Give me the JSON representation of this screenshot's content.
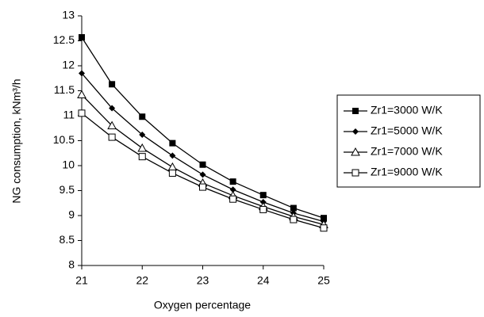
{
  "chart_data": {
    "type": "line",
    "x": [
      21,
      21.5,
      22,
      22.5,
      23,
      23.5,
      24,
      24.5,
      25
    ],
    "xlim": [
      21,
      25
    ],
    "xticks": [
      21,
      22,
      23,
      24,
      25
    ],
    "ylim": [
      8,
      13
    ],
    "yticks": [
      8,
      8.5,
      9,
      9.5,
      10,
      10.5,
      11,
      11.5,
      12,
      12.5,
      13
    ],
    "x_label": "Oxygen percentage",
    "y_label": "NG consumption, kNm³/h",
    "grid": false,
    "legend": "right",
    "series": [
      {
        "name": "Zr1=3000 W/K",
        "color": "#000000",
        "marker": "square-filled",
        "values": [
          12.57,
          11.63,
          10.98,
          10.45,
          10.02,
          9.68,
          9.41,
          9.15,
          8.95
        ]
      },
      {
        "name": "Zr1=5000 W/K",
        "color": "#000000",
        "marker": "diamond",
        "values": [
          11.85,
          11.15,
          10.62,
          10.2,
          9.82,
          9.52,
          9.27,
          9.05,
          8.88
        ]
      },
      {
        "name": "Zr1=7000 W/K",
        "color": "#000000",
        "marker": "triangle-open",
        "values": [
          11.42,
          10.8,
          10.35,
          9.97,
          9.65,
          9.4,
          9.18,
          8.98,
          8.82
        ]
      },
      {
        "name": "Zr1=9000 W/K",
        "color": "#000000",
        "marker": "square-open",
        "values": [
          11.05,
          10.57,
          10.18,
          9.85,
          9.57,
          9.33,
          9.12,
          8.92,
          8.75
        ]
      }
    ]
  }
}
